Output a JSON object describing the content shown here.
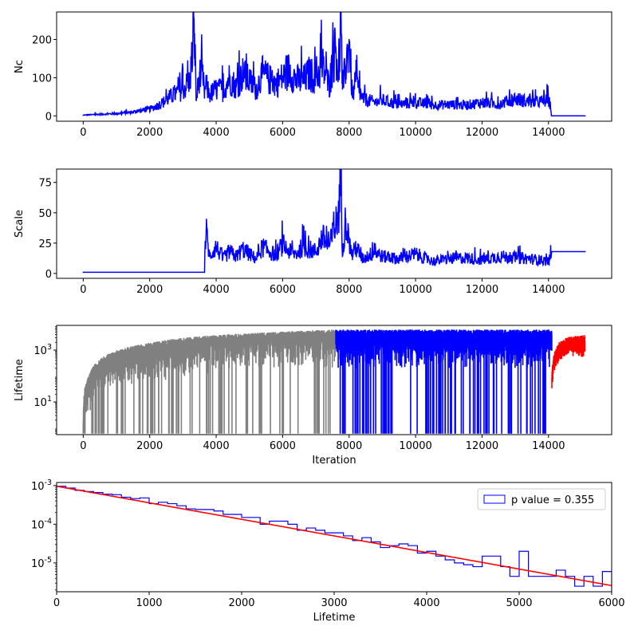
{
  "chart_data": [
    {
      "type": "line",
      "ylabel": "Nc",
      "xlabel": "",
      "xlim": [
        -800,
        15900
      ],
      "ylim": [
        -14,
        272
      ],
      "xticks": [
        0,
        2000,
        4000,
        6000,
        8000,
        10000,
        12000,
        14000
      ],
      "yticks": [
        0,
        100,
        200
      ],
      "series": [
        {
          "color": "#0000ff",
          "x": [
            0,
            500,
            1000,
            1500,
            2000,
            2200,
            2400,
            2600,
            2800,
            3000,
            3200,
            3350,
            3400,
            3500,
            3600,
            3650,
            3700,
            3800,
            4000,
            4200,
            4400,
            4600,
            4800,
            5000,
            5200,
            5400,
            5600,
            5800,
            6000,
            6200,
            6400,
            6600,
            6800,
            7000,
            7200,
            7400,
            7600,
            7700,
            7750,
            7800,
            7900,
            8000,
            8100,
            8200,
            8400,
            8600,
            8800,
            9000,
            9500,
            10000,
            10500,
            11000,
            11500,
            12000,
            12500,
            13000,
            13500,
            14000,
            14050,
            14100,
            15100
          ],
          "y": [
            2,
            4,
            6,
            10,
            18,
            25,
            35,
            48,
            60,
            70,
            90,
            215,
            40,
            110,
            100,
            60,
            80,
            55,
            70,
            65,
            100,
            75,
            110,
            90,
            70,
            110,
            95,
            85,
            100,
            120,
            95,
            90,
            110,
            100,
            130,
            80,
            180,
            95,
            260,
            70,
            130,
            200,
            50,
            90,
            45,
            40,
            35,
            40,
            30,
            35,
            28,
            30,
            28,
            35,
            30,
            45,
            35,
            40,
            30,
            0,
            0
          ]
        }
      ]
    },
    {
      "type": "line",
      "ylabel": "Scale",
      "xlabel": "",
      "xlim": [
        -800,
        15900
      ],
      "ylim": [
        -4,
        86
      ],
      "xticks": [
        0,
        2000,
        4000,
        6000,
        8000,
        10000,
        12000,
        14000
      ],
      "yticks": [
        0,
        25,
        50,
        75
      ],
      "series": [
        {
          "color": "#0000ff",
          "x": [
            0,
            3650,
            3660,
            3700,
            3800,
            4000,
            4200,
            4400,
            4600,
            4800,
            5000,
            5200,
            5400,
            5600,
            5800,
            6000,
            6200,
            6400,
            6600,
            6800,
            7000,
            7200,
            7400,
            7600,
            7700,
            7750,
            7800,
            7900,
            8000,
            8100,
            8200,
            8400,
            8600,
            8800,
            9000,
            9500,
            10000,
            10500,
            11000,
            11500,
            12000,
            12500,
            13000,
            13500,
            14000,
            14050,
            14100,
            15100
          ],
          "y": [
            1,
            1,
            18,
            35,
            14,
            22,
            12,
            18,
            14,
            20,
            16,
            12,
            22,
            18,
            15,
            24,
            18,
            16,
            22,
            20,
            18,
            30,
            22,
            40,
            55,
            82,
            20,
            45,
            25,
            15,
            22,
            12,
            15,
            18,
            14,
            12,
            16,
            10,
            12,
            13,
            11,
            14,
            13,
            12,
            10,
            12,
            18,
            18
          ]
        }
      ]
    },
    {
      "type": "line",
      "ylabel": "Lifetime",
      "xlabel": "Iteration",
      "xlim": [
        -800,
        15900
      ],
      "ylim": [
        0.55,
        9000
      ],
      "yscale": "log",
      "xticks": [
        0,
        2000,
        4000,
        6000,
        8000,
        10000,
        12000,
        14000
      ],
      "yticks": [
        10,
        1000
      ],
      "ytick_labels": [
        "10^1",
        "10^3"
      ],
      "series": [
        {
          "color": "#808080",
          "x": [
            0,
            200,
            500,
            1000,
            2000,
            3000,
            4000,
            5000,
            6000,
            7000,
            7600
          ],
          "y": [
            2,
            100,
            350,
            750,
            1500,
            2300,
            3000,
            3500,
            4000,
            4500,
            4800
          ]
        },
        {
          "color": "#0000ff",
          "x": [
            7600,
            8000,
            9000,
            10000,
            11000,
            12000,
            13000,
            14100
          ],
          "y": [
            4800,
            4800,
            4800,
            4800,
            4800,
            4800,
            4800,
            4800
          ]
        },
        {
          "color": "#ff0000",
          "x": [
            14100,
            14300,
            14600,
            15100
          ],
          "y": [
            100,
            1500,
            2500,
            3000
          ]
        }
      ]
    },
    {
      "type": "area",
      "ylabel": "",
      "xlabel": "Lifetime",
      "xlim": [
        0,
        6000
      ],
      "ylim": [
        1.8e-06,
        0.0012
      ],
      "yscale": "log",
      "xticks": [
        0,
        1000,
        2000,
        3000,
        4000,
        5000,
        6000
      ],
      "yticks": [
        1e-05,
        0.0001,
        0.001
      ],
      "ytick_labels": [
        "10^-5",
        "10^-4",
        "10^-3"
      ],
      "legend": {
        "placement": "top-right",
        "label": "p value = 0.355"
      },
      "histogram": {
        "color": "#0000ff",
        "bin_width": 100,
        "values": [
          0.00096,
          0.00086,
          0.00075,
          0.0007,
          0.00066,
          0.0006,
          0.00058,
          0.0005,
          0.00046,
          0.00048,
          0.00034,
          0.00037,
          0.00034,
          0.0003,
          0.00025,
          0.00024,
          0.00024,
          0.00022,
          0.00018,
          0.00018,
          0.00015,
          0.00015,
          0.0001,
          0.00012,
          0.00012,
          0.0001,
          7e-05,
          8e-05,
          7e-05,
          6e-05,
          6e-05,
          5e-05,
          3.8e-05,
          4.5e-05,
          3.5e-05,
          2.5e-05,
          2.8e-05,
          3.1e-05,
          2.8e-05,
          1.8e-05,
          2e-05,
          1.5e-05,
          1.2e-05,
          1e-05,
          9e-06,
          8e-06,
          1.5e-05,
          1.5e-05,
          8e-06,
          4.5e-06,
          2e-05,
          4.5e-06,
          4.5e-06,
          4.5e-06,
          6.5e-06,
          4.5e-06,
          2.5e-06,
          4.5e-06,
          2.5e-06,
          6e-06
        ]
      },
      "fit": {
        "color": "#ff0000",
        "x": [
          0,
          6000
        ],
        "y": [
          0.00096,
          2.6e-06
        ]
      }
    }
  ]
}
